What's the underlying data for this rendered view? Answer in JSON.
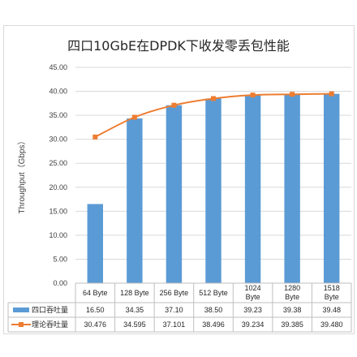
{
  "chart_data": {
    "type": "bar",
    "title": "四口10GbE在DPDK下收发零丢包性能",
    "ylabel": "Throughput（Gbps）",
    "ylim": [
      0,
      45
    ],
    "yticks": [
      "0.00",
      "5.00",
      "10.00",
      "15.00",
      "20.00",
      "25.00",
      "30.00",
      "35.00",
      "40.00",
      "45.00"
    ],
    "ytick_values": [
      0,
      5,
      10,
      15,
      20,
      25,
      30,
      35,
      40,
      45
    ],
    "categories": [
      "64 Byte",
      "128 Byte",
      "256 Byte",
      "512 Byte",
      "1024 Byte",
      "1280 Byte",
      "1518 Byte"
    ],
    "grid": true,
    "legend": "data-table",
    "series": [
      {
        "name": "四口吞吐量",
        "kind": "bar",
        "color": "#5b9bd5",
        "values": [
          16.5,
          34.35,
          37.1,
          38.5,
          39.23,
          39.38,
          39.48
        ],
        "labels": [
          "16.50",
          "34.35",
          "37.10",
          "38.50",
          "39.23",
          "39.38",
          "39.48"
        ]
      },
      {
        "name": "理论吞吐量",
        "kind": "line",
        "color": "#ed7d31",
        "values": [
          30.476,
          34.595,
          37.101,
          38.496,
          39.234,
          39.385,
          39.48
        ],
        "labels": [
          "30.476",
          "34.595",
          "37.101",
          "38.496",
          "39.234",
          "39.385",
          "39.480"
        ]
      }
    ]
  }
}
